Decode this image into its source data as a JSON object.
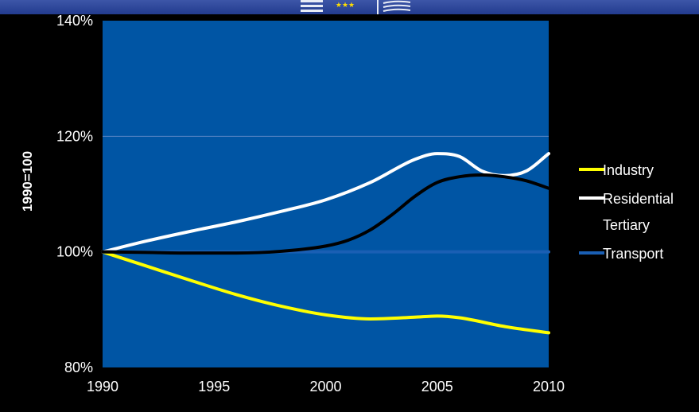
{
  "chart_data": {
    "type": "line",
    "xlabel": "",
    "ylabel": "1990=100",
    "xlim": [
      1990,
      2010
    ],
    "ylim": [
      80,
      140
    ],
    "x_ticks": [
      "1990",
      "1995",
      "2000",
      "2005",
      "2010"
    ],
    "y_ticks": [
      "80%",
      "100%",
      "120%",
      "140%"
    ],
    "grid": "horizontal",
    "legend_position": "right",
    "plot_background": "#0055a4",
    "series": [
      {
        "name": "Industry",
        "color": "#ffff00",
        "x": [
          1990,
          1992,
          1994,
          1996,
          1998,
          2000,
          2002,
          2004,
          2005,
          2006,
          2008,
          2010
        ],
        "values": [
          100,
          97.5,
          95,
          92.6,
          90.6,
          89.1,
          88.4,
          88.7,
          88.9,
          88.6,
          87.1,
          86
        ]
      },
      {
        "name": "Residential Tertiary",
        "label_lines": [
          "Residential",
          "Tertiary"
        ],
        "color": "#ffffff",
        "x": [
          1990,
          1992,
          1994,
          1996,
          1998,
          2000,
          2002,
          2004,
          2005,
          2006,
          2007,
          2008,
          2009,
          2010
        ],
        "values": [
          100,
          101.9,
          103.6,
          105.2,
          107,
          109,
          112,
          116,
          117,
          116.5,
          114,
          113.2,
          114,
          117
        ]
      },
      {
        "name": "Transport",
        "color": "#1a5fb4",
        "x": [
          1990,
          1995,
          2000,
          2005,
          2010
        ],
        "values": [
          100,
          100,
          100,
          100,
          100
        ]
      },
      {
        "name": "",
        "color": "#000000",
        "x": [
          1990,
          1992,
          1994,
          1996,
          1998,
          2000,
          2001,
          2002,
          2003,
          2004,
          2005,
          2006,
          2007,
          2008,
          2009,
          2010
        ],
        "values": [
          100,
          99.9,
          99.8,
          99.8,
          100.1,
          101,
          102,
          103.8,
          106.5,
          109.6,
          112,
          113,
          113.3,
          113,
          112.3,
          111
        ]
      }
    ]
  }
}
